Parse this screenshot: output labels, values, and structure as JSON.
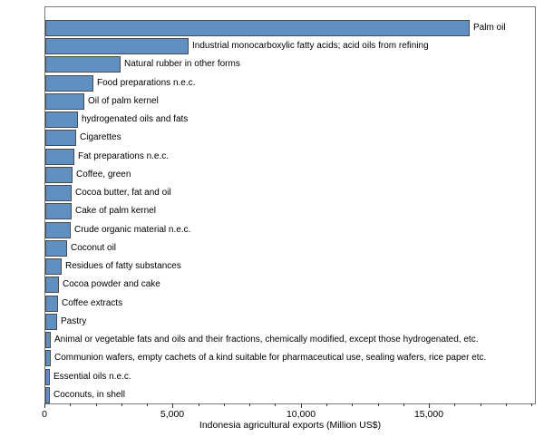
{
  "chart_data": {
    "type": "bar",
    "orientation": "horizontal",
    "title": "",
    "xlabel": "Indonesia agricultural exports (Million US$)",
    "ylabel": "",
    "xlim": [
      0,
      19100
    ],
    "x_major_ticks": [
      {
        "value": 0,
        "label": "0"
      },
      {
        "value": 5000,
        "label": "5,000"
      },
      {
        "value": 10000,
        "label": "10,000"
      },
      {
        "value": 15000,
        "label": "15,000"
      }
    ],
    "x_minor_tick_step": 1000,
    "grid": false,
    "legend": "none",
    "bar_color": "#6090c2",
    "bar_border_color": "#4a4a4a",
    "frame_color": "#7a7a7a",
    "categories": [
      "Palm oil",
      "Industrial monocarboxylic fatty acids; acid oils from refining",
      "Natural rubber in other forms",
      "Food preparations n.e.c.",
      "Oil of palm kernel",
      "hydrogenated oils and fats",
      "Cigarettes",
      "Fat preparations n.e.c.",
      "Coffee, green",
      "Cocoa butter, fat and oil",
      "Cake of palm kernel",
      "Crude organic material n.e.c.",
      "Coconut oil",
      "Residues of fatty substances",
      "Cocoa powder and cake",
      "Coffee extracts",
      "Pastry",
      "Animal or vegetable fats and oils and their fractions, chemically modified, except those hydrogenated, etc.",
      "Communion wafers, empty cachets of a kind suitable for pharmaceutical use, sealing wafers, rice paper etc.",
      "Essential oils n.e.c.",
      "Coconuts, in shell"
    ],
    "values": [
      16550,
      5600,
      2950,
      1890,
      1530,
      1290,
      1210,
      1120,
      1075,
      1030,
      1020,
      990,
      850,
      625,
      520,
      495,
      450,
      215,
      210,
      160,
      180
    ]
  }
}
